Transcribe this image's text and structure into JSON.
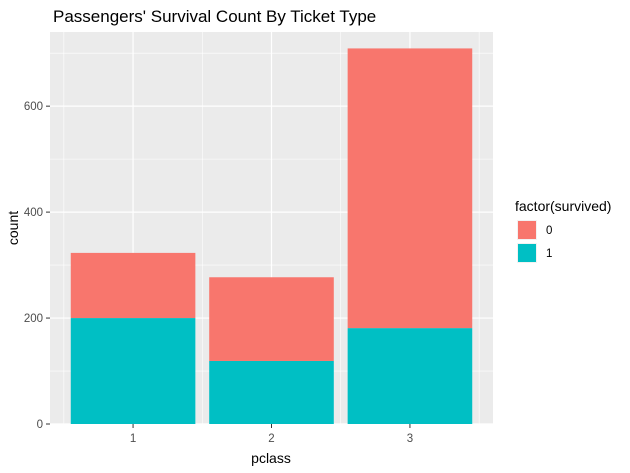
{
  "chart_data": {
    "type": "bar",
    "stacked": true,
    "title": "Passengers' Survival Count By Ticket Type",
    "xlabel": "pclass",
    "ylabel": "count",
    "categories": [
      "1",
      "2",
      "3"
    ],
    "series": [
      {
        "name": "0",
        "color": "#F8766D",
        "values": [
          123,
          158,
          528
        ]
      },
      {
        "name": "1",
        "color": "#00BFC4",
        "values": [
          200,
          119,
          181
        ]
      }
    ],
    "ylim": [
      0,
      740
    ],
    "yticks": [
      "0",
      "200",
      "400",
      "600"
    ],
    "ytick_values": [
      0,
      200,
      400,
      600
    ],
    "legend": {
      "title": "factor(survived)",
      "position": "right"
    },
    "grid": true,
    "panel_background": "#EBEBEB"
  }
}
